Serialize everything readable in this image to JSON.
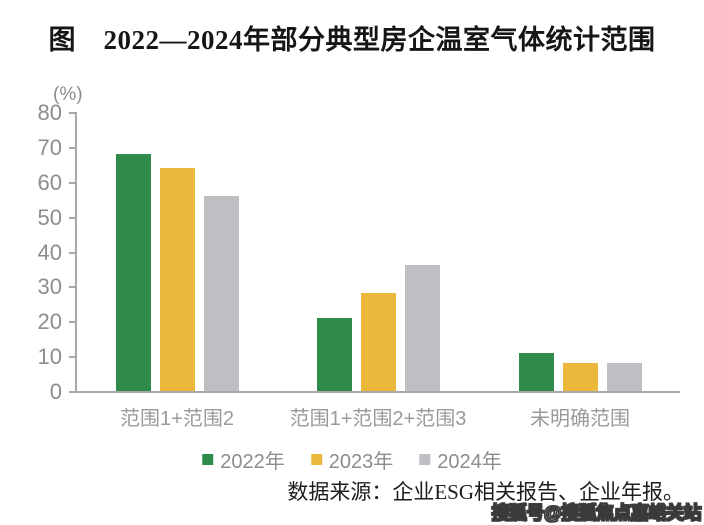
{
  "chart_data": {
    "type": "bar",
    "title": "图　2022—2024年部分典型房企温室气体统计范围",
    "unit_label": "(%)",
    "categories": [
      "范围1+范围2",
      "范围1+范围2+范围3",
      "未明确范围"
    ],
    "series": [
      {
        "name": "2022年",
        "color": "#2e8b4a",
        "values": [
          68,
          21,
          11
        ]
      },
      {
        "name": "2023年",
        "color": "#ecb83c",
        "values": [
          64,
          28,
          8
        ]
      },
      {
        "name": "2024年",
        "color": "#bdbfc3",
        "values": [
          56,
          36,
          8
        ]
      }
    ],
    "ylim": [
      0,
      80
    ],
    "ytick_step": 10,
    "yticks": [
      0,
      10,
      20,
      30,
      40,
      50,
      60,
      70,
      80
    ],
    "grid": false,
    "legend_position": "bottom",
    "axis_color": "#a8a8a8",
    "tick_label_color": "#8d8d8d",
    "source_note": "数据来源：企业ESG相关报告、企业年报。",
    "watermark": "搜狐号@搜狐焦点嘉峪关站"
  }
}
